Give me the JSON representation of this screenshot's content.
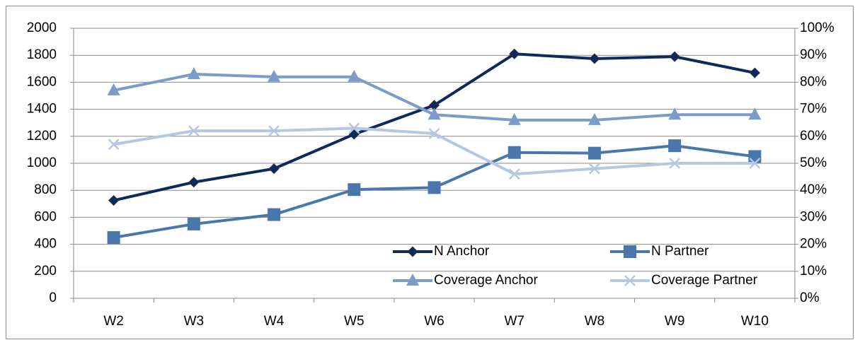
{
  "chart_data": {
    "type": "line",
    "categories": [
      "W2",
      "W3",
      "W4",
      "W5",
      "W6",
      "W7",
      "W8",
      "W9",
      "W10"
    ],
    "series": [
      {
        "name": "N Anchor",
        "color": "#0e2a5c",
        "marker": "diamond",
        "values": [
          725,
          860,
          960,
          1215,
          1430,
          1810,
          1775,
          1790,
          1670
        ]
      },
      {
        "name": "N Partner",
        "color": "#4a77ab",
        "marker": "square",
        "values": [
          450,
          550,
          620,
          805,
          820,
          1080,
          1075,
          1130,
          1050
        ]
      },
      {
        "name": "Coverage Anchor",
        "color": "#7b9cc9",
        "marker": "triangle",
        "axis": "y2",
        "values": [
          77,
          83,
          82,
          82,
          68,
          66,
          66,
          68,
          68
        ]
      },
      {
        "name": "Coverage Partner",
        "color": "#b5c7e1",
        "marker": "x",
        "axis": "y2",
        "values": [
          57,
          62,
          62,
          63,
          61,
          46,
          48,
          50,
          50
        ]
      }
    ],
    "ylim": [
      0,
      2000
    ],
    "yticks": [
      0,
      200,
      400,
      600,
      800,
      1000,
      1200,
      1400,
      1600,
      1800,
      2000
    ],
    "y2lim": [
      0,
      100
    ],
    "y2ticks": [
      {
        "value": 0,
        "label": "0%"
      },
      {
        "value": 10,
        "label": "10%"
      },
      {
        "value": 20,
        "label": "20%"
      },
      {
        "value": 30,
        "label": "30%"
      },
      {
        "value": 40,
        "label": "40%"
      },
      {
        "value": 50,
        "label": "50%"
      },
      {
        "value": 60,
        "label": "60%"
      },
      {
        "value": 70,
        "label": "70%"
      },
      {
        "value": 80,
        "label": "80%"
      },
      {
        "value": 90,
        "label": "90%"
      },
      {
        "value": 100,
        "label": "100%"
      }
    ],
    "grid": true,
    "legend": "lower right"
  }
}
